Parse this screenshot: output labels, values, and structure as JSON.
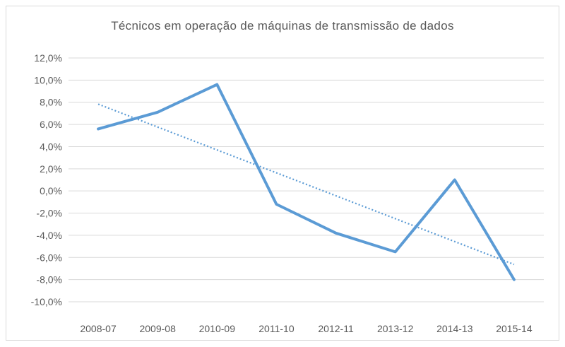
{
  "chart_data": {
    "type": "line",
    "title": "Técnicos em operação de máquinas de transmissão de dados",
    "categories": [
      "2008-07",
      "2009-08",
      "2010-09",
      "2011-10",
      "2012-11",
      "2013-12",
      "2014-13",
      "2015-14"
    ],
    "series": [
      {
        "values": [
          5.6,
          7.1,
          9.6,
          -1.2,
          -3.8,
          -5.5,
          1.0,
          -8.0
        ],
        "color": "#5b9bd5"
      }
    ],
    "trendline": {
      "type": "linear",
      "style": "dotted",
      "color": "#5b9bd5"
    },
    "y_ticks": [
      "12,0%",
      "10,0%",
      "8,0%",
      "6,0%",
      "4,0%",
      "2,0%",
      "0,0%",
      "-2,0%",
      "-4,0%",
      "-6,0%",
      "-8,0%",
      "-10,0%"
    ],
    "ylim": [
      -10,
      12
    ],
    "grid": "horizontal",
    "legend": "none"
  }
}
